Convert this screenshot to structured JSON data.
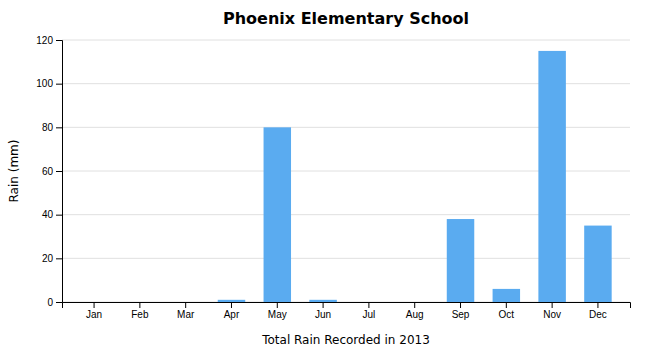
{
  "chart_data": {
    "type": "bar",
    "title": "Phoenix Elementary School",
    "xlabel": "Total Rain Recorded in 2013",
    "ylabel": "Rain (mm)",
    "categories": [
      "Jan",
      "Feb",
      "Mar",
      "Apr",
      "May",
      "Jun",
      "Jul",
      "Aug",
      "Sep",
      "Oct",
      "Nov",
      "Dec"
    ],
    "values": [
      0,
      0,
      0,
      1,
      80,
      1,
      0,
      0,
      38,
      6,
      115,
      35
    ],
    "color": "#5aabf0",
    "ylim": [
      0,
      120
    ],
    "yticks": [
      0,
      20,
      40,
      60,
      80,
      100,
      120
    ],
    "grid": true
  }
}
